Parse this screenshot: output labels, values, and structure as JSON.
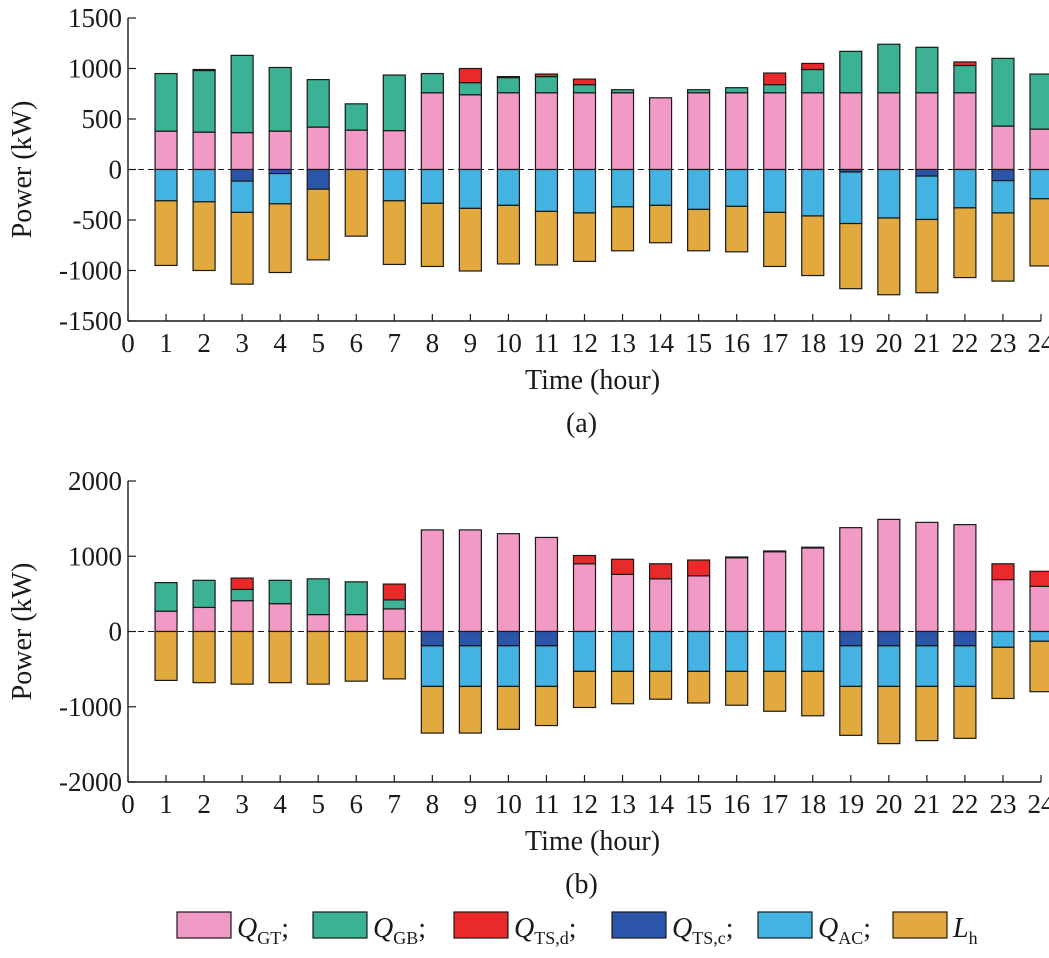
{
  "chart_data": [
    {
      "type": "bar",
      "panel_label": "(a)",
      "xlabel": "Time (hour)",
      "ylabel": "Power (kW)",
      "ylim": [
        -1500,
        1500
      ],
      "yticks": [
        -1500,
        -1000,
        -500,
        0,
        500,
        1000,
        1500
      ],
      "xlim": [
        0,
        24
      ],
      "xticks": [
        0,
        1,
        2,
        3,
        4,
        5,
        6,
        7,
        8,
        9,
        10,
        11,
        12,
        13,
        14,
        15,
        16,
        17,
        18,
        19,
        20,
        21,
        22,
        23,
        24
      ],
      "categories": [
        1,
        2,
        3,
        4,
        5,
        6,
        7,
        8,
        9,
        10,
        11,
        12,
        13,
        14,
        15,
        16,
        17,
        18,
        19,
        20,
        21,
        22,
        23,
        24
      ],
      "zero_line": "dashed",
      "series": [
        {
          "key": "QGT",
          "values": [
            380,
            370,
            365,
            380,
            420,
            390,
            385,
            760,
            740,
            760,
            760,
            760,
            760,
            710,
            760,
            760,
            760,
            760,
            760,
            760,
            760,
            760,
            430,
            400
          ]
        },
        {
          "key": "QGB",
          "values": [
            570,
            610,
            765,
            630,
            470,
            260,
            550,
            190,
            120,
            150,
            160,
            80,
            30,
            0,
            30,
            50,
            80,
            230,
            410,
            480,
            450,
            270,
            670,
            545
          ]
        },
        {
          "key": "QTS_d",
          "values": [
            0,
            10,
            0,
            0,
            0,
            0,
            0,
            0,
            140,
            10,
            25,
            55,
            0,
            0,
            0,
            0,
            115,
            60,
            0,
            0,
            0,
            35,
            0,
            0
          ]
        },
        {
          "key": "QTS_c",
          "values": [
            0,
            0,
            -115,
            -40,
            -195,
            0,
            0,
            0,
            0,
            0,
            0,
            0,
            0,
            0,
            0,
            0,
            0,
            0,
            -25,
            0,
            -65,
            0,
            -110,
            0
          ]
        },
        {
          "key": "QAC",
          "values": [
            -310,
            -320,
            -310,
            -300,
            0,
            0,
            -310,
            -335,
            -385,
            -355,
            -415,
            -430,
            -370,
            -355,
            -395,
            -365,
            -425,
            -460,
            -510,
            -480,
            -430,
            -380,
            -320,
            -290
          ]
        },
        {
          "key": "Lh",
          "values": [
            -640,
            -680,
            -710,
            -680,
            -700,
            -660,
            -630,
            -625,
            -620,
            -580,
            -530,
            -480,
            -435,
            -370,
            -410,
            -450,
            -535,
            -590,
            -645,
            -760,
            -725,
            -690,
            -675,
            -665
          ]
        }
      ]
    },
    {
      "type": "bar",
      "panel_label": "(b)",
      "xlabel": "Time (hour)",
      "ylabel": "Power (kW)",
      "ylim": [
        -2000,
        2000
      ],
      "yticks": [
        -2000,
        -1000,
        0,
        1000,
        2000
      ],
      "xlim": [
        0,
        24
      ],
      "xticks": [
        0,
        1,
        2,
        3,
        4,
        5,
        6,
        7,
        8,
        9,
        10,
        11,
        12,
        13,
        14,
        15,
        16,
        17,
        18,
        19,
        20,
        21,
        22,
        23,
        24
      ],
      "categories": [
        1,
        2,
        3,
        4,
        5,
        6,
        7,
        8,
        9,
        10,
        11,
        12,
        13,
        14,
        15,
        16,
        17,
        18,
        19,
        20,
        21,
        22,
        23,
        24
      ],
      "zero_line": "dashed",
      "series": [
        {
          "key": "QGT",
          "values": [
            270,
            320,
            410,
            370,
            225,
            225,
            300,
            1350,
            1350,
            1300,
            1250,
            900,
            760,
            700,
            740,
            980,
            1060,
            1110,
            1380,
            1490,
            1450,
            1420,
            690,
            600
          ]
        },
        {
          "key": "QGB",
          "values": [
            380,
            360,
            150,
            310,
            475,
            435,
            120,
            0,
            0,
            0,
            0,
            0,
            0,
            0,
            0,
            0,
            0,
            0,
            0,
            0,
            0,
            0,
            0,
            0
          ]
        },
        {
          "key": "QTS_d",
          "values": [
            0,
            0,
            150,
            0,
            0,
            0,
            210,
            0,
            0,
            0,
            0,
            110,
            200,
            200,
            210,
            10,
            10,
            10,
            0,
            0,
            0,
            0,
            210,
            200
          ]
        },
        {
          "key": "QTS_c",
          "values": [
            0,
            0,
            0,
            0,
            0,
            0,
            0,
            -190,
            -190,
            -190,
            -190,
            0,
            0,
            0,
            0,
            0,
            0,
            0,
            -190,
            -190,
            -190,
            -190,
            0,
            0
          ]
        },
        {
          "key": "QAC",
          "values": [
            0,
            0,
            0,
            0,
            0,
            0,
            0,
            -540,
            -540,
            -540,
            -540,
            -530,
            -530,
            -530,
            -530,
            -530,
            -530,
            -530,
            -540,
            -540,
            -540,
            -540,
            -210,
            -130
          ]
        },
        {
          "key": "Lh",
          "values": [
            -650,
            -680,
            -700,
            -680,
            -700,
            -660,
            -630,
            -620,
            -620,
            -570,
            -520,
            -480,
            -430,
            -370,
            -420,
            -450,
            -530,
            -590,
            -650,
            -760,
            -720,
            -690,
            -680,
            -670
          ]
        }
      ]
    }
  ],
  "legend": {
    "entries": [
      {
        "key": "QGT",
        "main": "Q",
        "sub": "GT",
        "sep": ";"
      },
      {
        "key": "QGB",
        "main": "Q",
        "sub": "GB",
        "sep": ";"
      },
      {
        "key": "QTS_d",
        "main": "Q",
        "sub": "TS,d",
        "sep": ";"
      },
      {
        "key": "QTS_c",
        "main": "Q",
        "sub": "TS,c",
        "sep": ";"
      },
      {
        "key": "QAC",
        "main": "Q",
        "sub": "AC",
        "sep": ";"
      },
      {
        "key": "Lh",
        "main": "L",
        "sub": "h",
        "sep": ""
      }
    ]
  },
  "colors": {
    "QGT": "#f29ac6",
    "QGB": "#3bb293",
    "QTS_d": "#ea2a2a",
    "QTS_c": "#2a55a8",
    "QAC": "#45b3e1",
    "Lh": "#e2aa3e",
    "axis": "#1a1a1a"
  }
}
